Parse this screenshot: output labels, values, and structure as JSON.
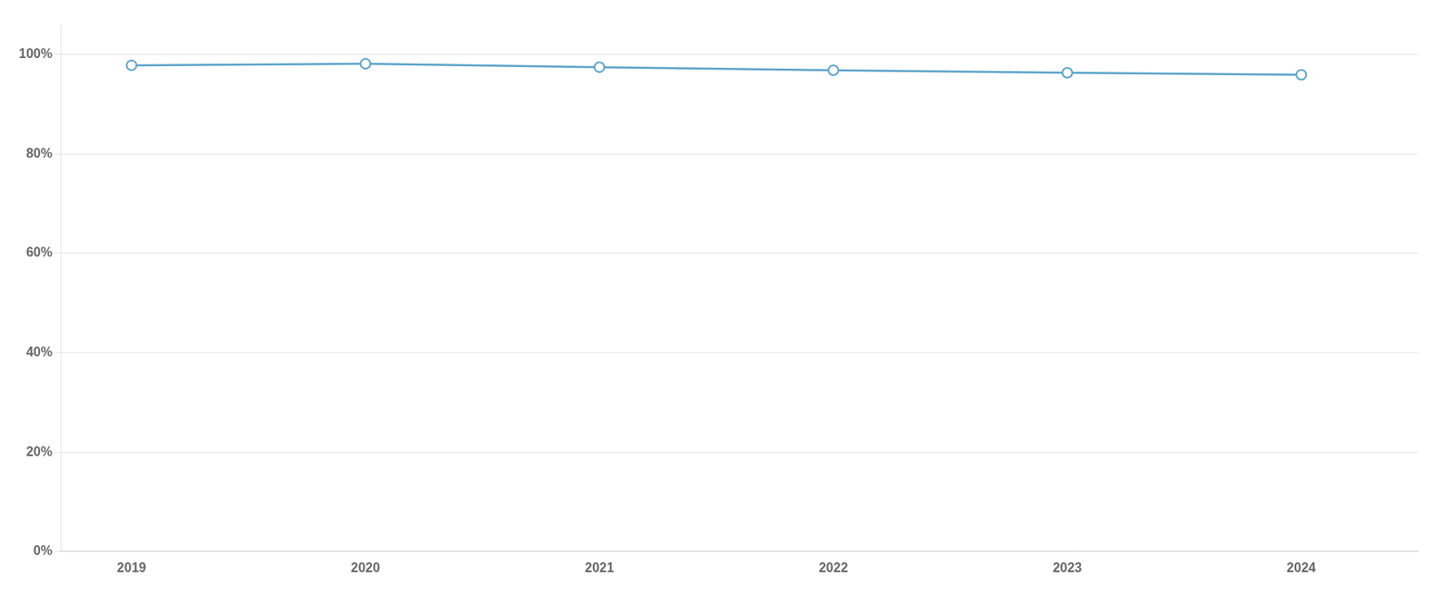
{
  "chart_data": {
    "type": "line",
    "x": [
      2019,
      2020,
      2021,
      2022,
      2023,
      2024
    ],
    "values": [
      97.8,
      98.1,
      97.4,
      96.8,
      96.3,
      95.9
    ],
    "color": "#5ba3c9",
    "marker": "circle",
    "xlim": [
      2018.7,
      2024.5
    ],
    "xticks": [
      2019,
      2020,
      2021,
      2022,
      2023,
      2024
    ],
    "ylim": [
      0,
      106
    ],
    "yticks": [
      {
        "value": 0,
        "label": "0%"
      },
      {
        "value": 20,
        "label": "20%"
      },
      {
        "value": 40,
        "label": "40%"
      },
      {
        "value": 60,
        "label": "60%"
      },
      {
        "value": 80,
        "label": "80%"
      },
      {
        "value": 100,
        "label": "100%"
      }
    ],
    "grid": "y"
  }
}
